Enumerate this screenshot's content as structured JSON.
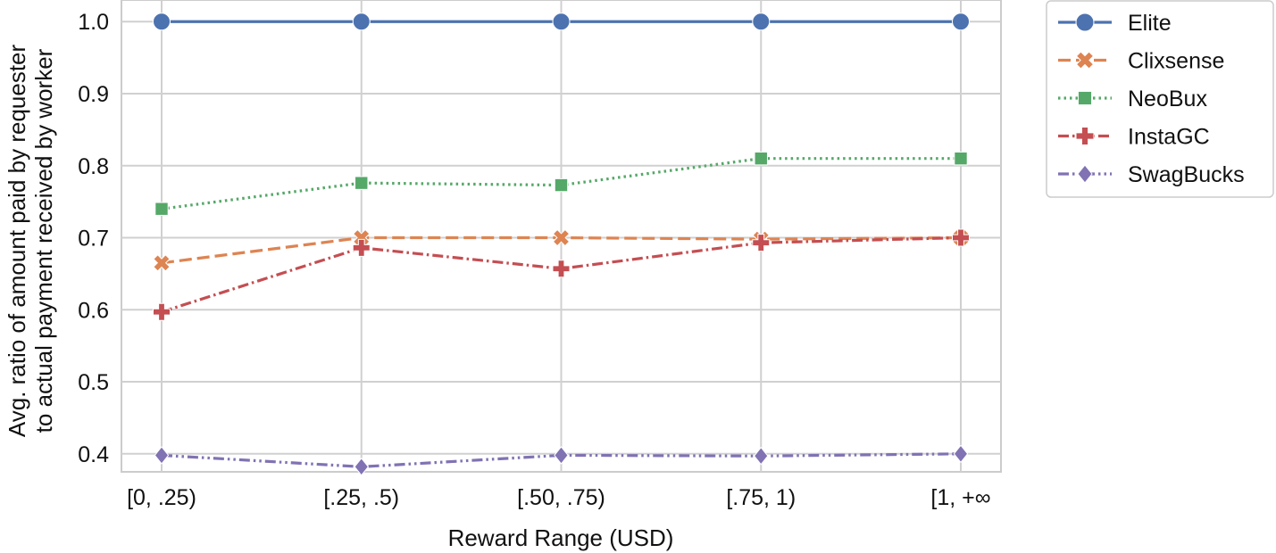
{
  "chart_data": {
    "type": "line",
    "categories": [
      "[0, .25)",
      "[.25, .5)",
      "[.50, .75)",
      "[.75, 1)",
      "[1, +∞"
    ],
    "xlabel": "Reward Range (USD)",
    "ylabel_lines": [
      "Avg. ratio of amount paid by requester",
      "to actual payment received by worker"
    ],
    "ylim": [
      0.375,
      1.03
    ],
    "yticks": [
      0.4,
      0.5,
      0.6,
      0.7,
      0.8,
      0.9,
      1.0
    ],
    "ytick_labels": [
      "0.4",
      "0.5",
      "0.6",
      "0.7",
      "0.8",
      "0.9",
      "1.0"
    ],
    "grid": true,
    "legend_position": "outside-right-top",
    "series": [
      {
        "name": "Elite",
        "values": [
          1.0,
          1.0,
          1.0,
          1.0,
          1.0
        ],
        "color": "#4c72b0",
        "marker": "circle",
        "dash": "solid"
      },
      {
        "name": "Clixsense",
        "values": [
          0.665,
          0.7,
          0.7,
          0.698,
          0.7
        ],
        "color": "#dd8452",
        "marker": "x",
        "dash": "dashed"
      },
      {
        "name": "NeoBux",
        "values": [
          0.74,
          0.776,
          0.773,
          0.81,
          0.81
        ],
        "color": "#55a868",
        "marker": "square",
        "dash": "dotted"
      },
      {
        "name": "InstaGC",
        "values": [
          0.597,
          0.686,
          0.657,
          0.693,
          0.7
        ],
        "color": "#c44e52",
        "marker": "plus",
        "dash": "dashdot"
      },
      {
        "name": "SwagBucks",
        "values": [
          0.398,
          0.382,
          0.398,
          0.397,
          0.4
        ],
        "color": "#8172b3",
        "marker": "diamond",
        "dash": "dashdotdot"
      }
    ]
  }
}
